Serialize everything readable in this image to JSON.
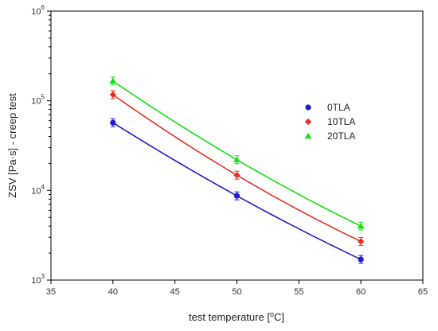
{
  "chart_data": {
    "type": "scatter",
    "xlabel_prefix": "test temperature [",
    "xlabel_sup": "o",
    "xlabel_suffix": "C]",
    "ylabel": "ZSV [Pa·s] - creep test",
    "xlim": [
      35,
      65
    ],
    "xticks": [
      "35",
      "40",
      "45",
      "50",
      "55",
      "60",
      "65"
    ],
    "y_scale": "log",
    "ylim": [
      1000,
      1000000
    ],
    "yticks": [
      {
        "value": 1000,
        "base": "10",
        "exp": "3"
      },
      {
        "value": 10000,
        "base": "10",
        "exp": "4"
      },
      {
        "value": 100000,
        "base": "10",
        "exp": "5"
      },
      {
        "value": 1000000,
        "base": "10",
        "exp": "6"
      }
    ],
    "grid": false,
    "legend_position": "right",
    "x": [
      40,
      50,
      60
    ],
    "series": [
      {
        "name": "0TLA",
        "color": "#1f1fc8",
        "marker": "circle",
        "values": [
          57000,
          8700,
          1700
        ]
      },
      {
        "name": "10TLA",
        "color": "#e8302a",
        "marker": "diamond",
        "values": [
          117000,
          14800,
          2700
        ]
      },
      {
        "name": "20TLA",
        "color": "#16e016",
        "marker": "triangle",
        "values": [
          166000,
          22000,
          4000
        ]
      }
    ]
  }
}
